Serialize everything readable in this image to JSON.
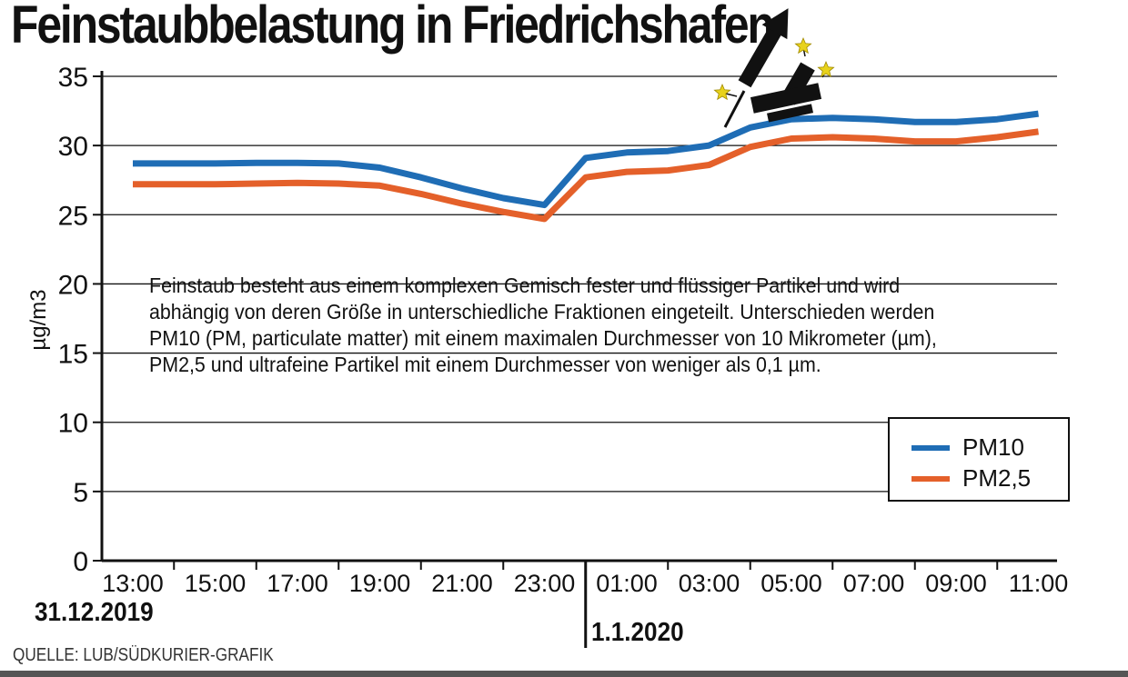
{
  "chart_data": {
    "type": "line",
    "title": "Feinstaubbelastung in Friedrichshafen",
    "ylabel": "µg/m3",
    "ylim": [
      0,
      35
    ],
    "yticks": [
      "0",
      "5",
      "10",
      "15",
      "20",
      "25",
      "30",
      "35"
    ],
    "x_tick_labels": [
      "13:00",
      "15:00",
      "17:00",
      "19:00",
      "21:00",
      "23:00",
      "01:00",
      "03:00",
      "05:00",
      "07:00",
      "09:00",
      "11:00"
    ],
    "series": [
      {
        "name": "PM10",
        "color": "#1f6db5",
        "values": [
          28.7,
          28.7,
          28.7,
          28.75,
          28.75,
          28.7,
          28.4,
          27.7,
          26.9,
          26.2,
          25.7,
          29.1,
          29.5,
          29.6,
          30.0,
          31.3,
          31.9,
          32.0,
          31.9,
          31.7,
          31.7,
          31.9,
          32.3
        ]
      },
      {
        "name": "PM2,5",
        "color": "#e4602a",
        "values": [
          27.2,
          27.2,
          27.2,
          27.25,
          27.3,
          27.25,
          27.1,
          26.5,
          25.8,
          25.2,
          24.7,
          27.7,
          28.1,
          28.2,
          28.6,
          29.9,
          30.5,
          30.6,
          30.5,
          30.3,
          30.3,
          30.6,
          31.0
        ]
      }
    ],
    "grid": true,
    "legend_position": "bottom-right",
    "annotation": "Feinstaub besteht aus einem komplexen Gemisch fester und flüssiger Partikel und wird abhängig von deren Größe in unterschiedliche Fraktionen eingeteilt. Unterschieden werden PM10 (PM, particulate matter) mit einem maximalen Durchmesser von 10 Mikrometer (µm), PM2,5 und ultrafeine Partikel mit einem Durchmesser von weniger als 0,1 µm."
  },
  "info_lines": [
    "Feinstaub besteht aus einem komplexen Gemisch fester und flüssiger Partikel und wird",
    "abhängig von deren Größe in unterschiedliche Fraktionen eingeteilt. Unterschieden werden",
    "PM10 (PM, particulate matter) mit einem maximalen Durchmesser von 10 Mikrometer (µm),",
    "PM2,5 und ultrafeine Partikel mit einem Durchmesser von weniger als 0,1 µm."
  ],
  "dates": {
    "left": "31.12.2019",
    "right": "1.1.2020"
  },
  "source": "QUELLE: LUB/SÜDKURIER-GRAFIK",
  "icon": "fireworks-rocket-icon"
}
